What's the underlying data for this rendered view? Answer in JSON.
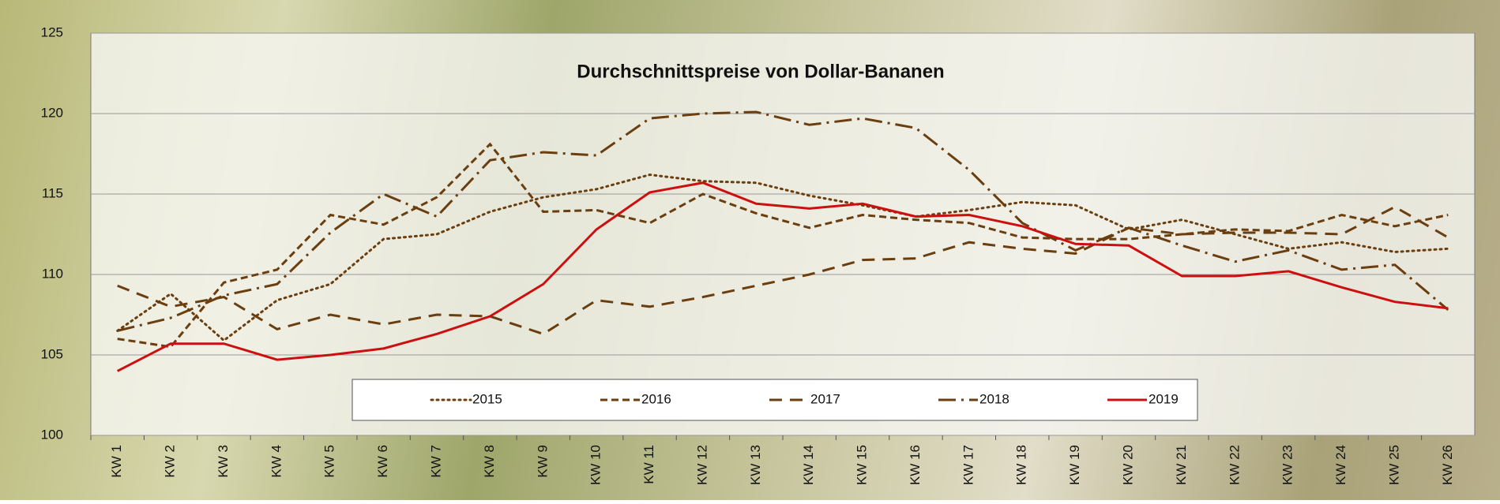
{
  "chart_data": {
    "type": "line",
    "title": "Durchschnittspreise von Dollar-Bananen",
    "categories": [
      "KW 1",
      "KW 2",
      "KW 3",
      "KW 4",
      "KW 5",
      "KW 6",
      "KW 7",
      "KW 8",
      "KW 9",
      "KW 10",
      "KW 11",
      "KW 12",
      "KW 13",
      "KW 14",
      "KW 15",
      "KW 16",
      "KW 17",
      "KW 18",
      "KW 19",
      "KW 20",
      "KW 21",
      "KW 22",
      "KW 23",
      "KW 24",
      "KW 25",
      "KW 26"
    ],
    "series": [
      {
        "name": "2015",
        "color": "#6b3e10",
        "dash": "dotted",
        "values": [
          106.5,
          108.8,
          105.9,
          108.4,
          109.4,
          112.2,
          112.5,
          113.9,
          114.8,
          115.3,
          116.2,
          115.8,
          115.7,
          114.9,
          114.3,
          113.6,
          114.0,
          114.5,
          114.3,
          112.8,
          113.4,
          112.5,
          111.6,
          112.0,
          111.4,
          111.6
        ]
      },
      {
        "name": "2016",
        "color": "#6b3e10",
        "dash": "short-dash",
        "values": [
          106.0,
          105.5,
          109.5,
          110.3,
          113.7,
          113.1,
          114.8,
          118.1,
          113.9,
          114.0,
          113.2,
          115.0,
          113.8,
          112.9,
          113.7,
          113.4,
          113.2,
          112.3,
          112.2,
          112.2,
          112.5,
          112.8,
          112.7,
          113.7,
          113.0,
          113.7
        ]
      },
      {
        "name": "2017",
        "color": "#6b3e10",
        "dash": "long-dash",
        "values": [
          109.3,
          108.0,
          108.6,
          106.6,
          107.5,
          106.9,
          107.5,
          107.4,
          106.3,
          108.4,
          108.0,
          108.6,
          109.3,
          110.0,
          110.9,
          111.0,
          112.0,
          111.6,
          111.3,
          112.9,
          112.5,
          112.6,
          112.6,
          112.5,
          114.2,
          112.3
        ]
      },
      {
        "name": "2018",
        "color": "#6b3e10",
        "dash": "dash-dot",
        "values": [
          106.5,
          107.3,
          108.7,
          109.4,
          112.6,
          115.0,
          113.6,
          117.1,
          117.6,
          117.4,
          119.7,
          120.0,
          120.1,
          119.3,
          119.7,
          119.1,
          116.5,
          113.2,
          111.5,
          112.9,
          111.8,
          110.8,
          111.5,
          110.3,
          110.6,
          107.8
        ]
      },
      {
        "name": "2019",
        "color": "#cc1010",
        "dash": "solid",
        "values": [
          104.0,
          105.7,
          105.7,
          104.7,
          105.0,
          105.4,
          106.3,
          107.4,
          109.4,
          112.8,
          115.1,
          115.7,
          114.4,
          114.1,
          114.4,
          113.6,
          113.7,
          113.0,
          111.9,
          111.8,
          109.9,
          109.9,
          110.2,
          109.2,
          108.3,
          107.9
        ]
      }
    ],
    "ylim": [
      100,
      125
    ],
    "yticks": [
      100,
      105,
      110,
      115,
      120,
      125
    ],
    "grid": true,
    "legend": "bottom"
  }
}
